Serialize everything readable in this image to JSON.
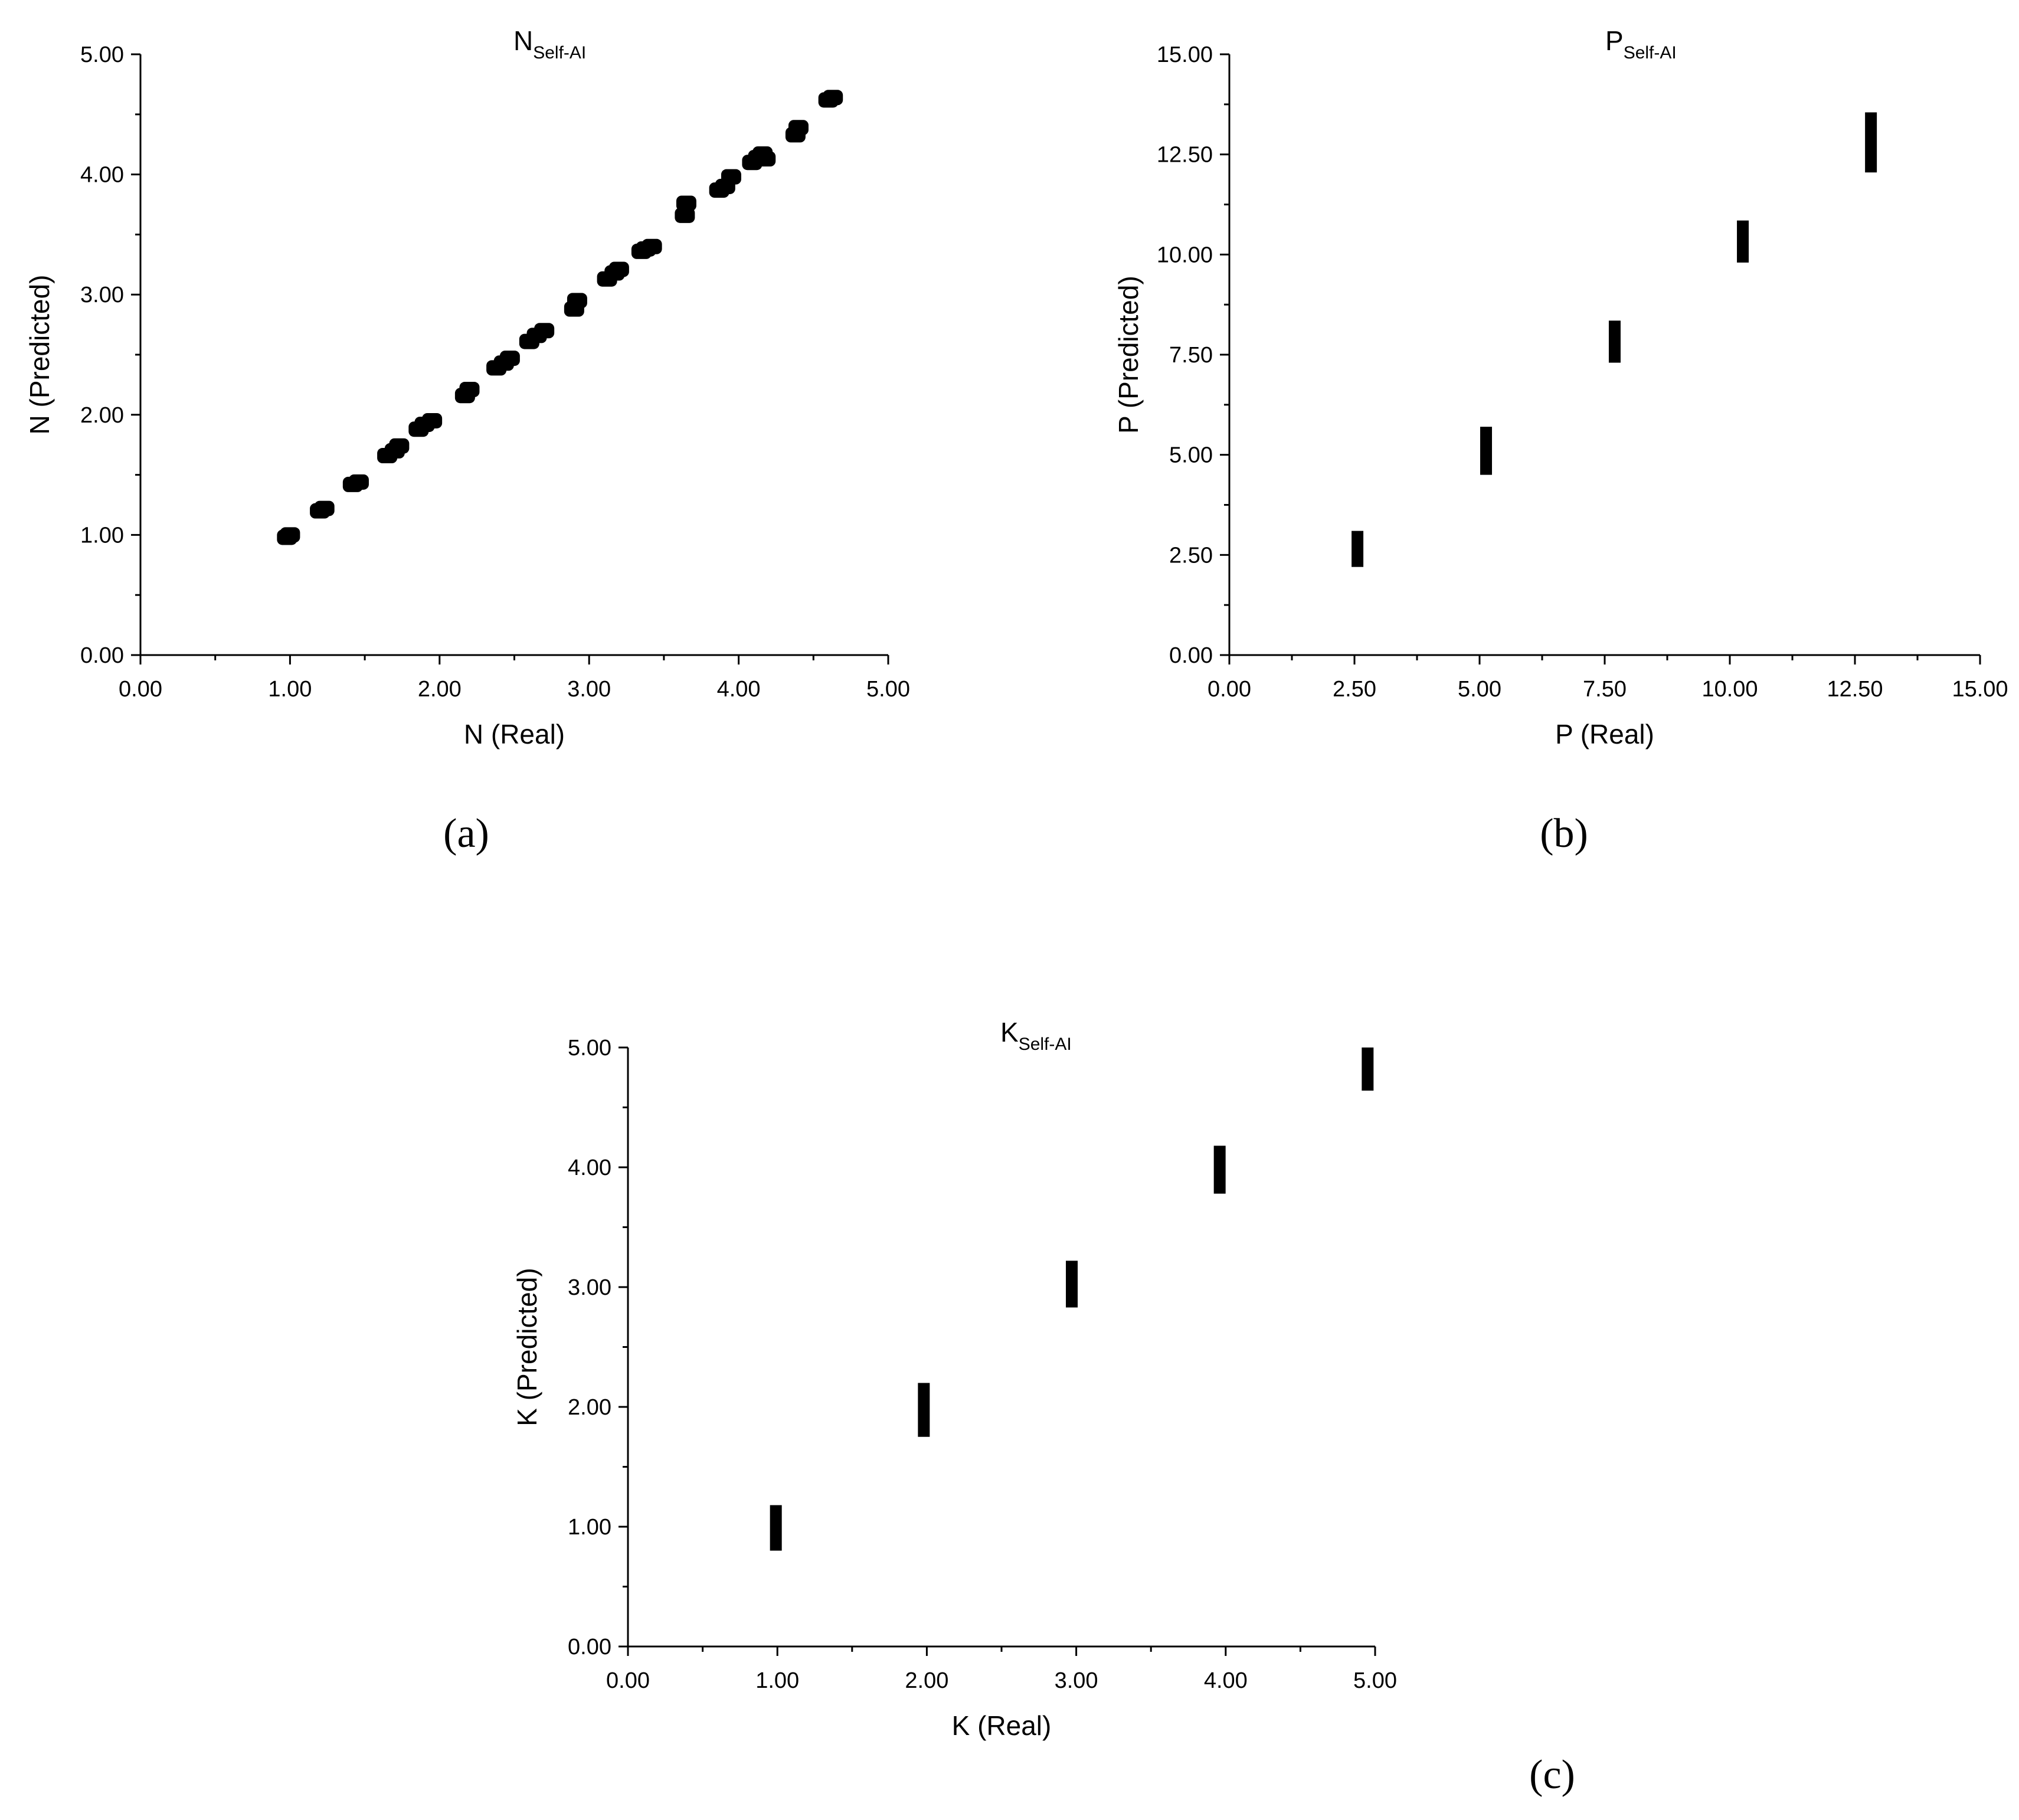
{
  "chart_data": [
    {
      "id": "a",
      "type": "scatter",
      "panel_label": "(a)",
      "title_main": "N",
      "title_sub": "Self-AI",
      "xlabel": "N (Real)",
      "ylabel": "N (Predicted)",
      "xlim": [
        0,
        5
      ],
      "ylim": [
        0,
        5
      ],
      "ticks": [
        "0.00",
        "1.00",
        "2.00",
        "3.00",
        "4.00",
        "5.00"
      ],
      "tick_values": [
        0,
        1,
        2,
        3,
        4,
        5
      ],
      "marker": "blob",
      "points": [
        [
          0.98,
          0.98
        ],
        [
          1.0,
          1.0
        ],
        [
          1.2,
          1.2
        ],
        [
          1.23,
          1.22
        ],
        [
          1.42,
          1.42
        ],
        [
          1.46,
          1.44
        ],
        [
          1.65,
          1.66
        ],
        [
          1.7,
          1.7
        ],
        [
          1.73,
          1.74
        ],
        [
          1.86,
          1.88
        ],
        [
          1.9,
          1.92
        ],
        [
          1.95,
          1.95
        ],
        [
          2.17,
          2.16
        ],
        [
          2.2,
          2.21
        ],
        [
          2.38,
          2.39
        ],
        [
          2.43,
          2.43
        ],
        [
          2.47,
          2.47
        ],
        [
          2.6,
          2.61
        ],
        [
          2.65,
          2.66
        ],
        [
          2.7,
          2.7
        ],
        [
          2.9,
          2.88
        ],
        [
          2.92,
          2.95
        ],
        [
          3.12,
          3.13
        ],
        [
          3.17,
          3.18
        ],
        [
          3.2,
          3.21
        ],
        [
          3.35,
          3.36
        ],
        [
          3.38,
          3.38
        ],
        [
          3.42,
          3.4
        ],
        [
          3.64,
          3.66
        ],
        [
          3.65,
          3.76
        ],
        [
          3.87,
          3.87
        ],
        [
          3.91,
          3.9
        ],
        [
          3.95,
          3.98
        ],
        [
          4.09,
          4.1
        ],
        [
          4.13,
          4.14
        ],
        [
          4.16,
          4.17
        ],
        [
          4.18,
          4.13
        ],
        [
          4.38,
          4.33
        ],
        [
          4.4,
          4.39
        ],
        [
          4.6,
          4.62
        ],
        [
          4.63,
          4.64
        ]
      ]
    },
    {
      "id": "b",
      "type": "scatter",
      "panel_label": "(b)",
      "title_main": "P",
      "title_sub": "Self-AI",
      "xlabel": "P (Real)",
      "ylabel": "P (Predicted)",
      "xlim": [
        0,
        15
      ],
      "ylim": [
        0,
        15
      ],
      "ticks": [
        "0.00",
        "2.50",
        "5.00",
        "7.50",
        "10.00",
        "12.50",
        "15.00"
      ],
      "tick_values": [
        0,
        2.5,
        5,
        7.5,
        10,
        12.5,
        15
      ],
      "marker": "bar",
      "points": [
        [
          2.56,
          2.2,
          3.1
        ],
        [
          5.13,
          4.5,
          5.7
        ],
        [
          7.7,
          7.3,
          8.35
        ],
        [
          10.26,
          9.8,
          10.85
        ],
        [
          12.82,
          12.05,
          13.55
        ]
      ]
    },
    {
      "id": "c",
      "type": "scatter",
      "panel_label": "(c)",
      "title_main": "K",
      "title_sub": "Self-AI",
      "xlabel": "K (Real)",
      "ylabel": "K (Predicted)",
      "xlim": [
        0,
        5
      ],
      "ylim": [
        0,
        5
      ],
      "ticks": [
        "0.00",
        "1.00",
        "2.00",
        "3.00",
        "4.00",
        "5.00"
      ],
      "tick_values": [
        0,
        1,
        2,
        3,
        4,
        5
      ],
      "marker": "bar",
      "points": [
        [
          0.99,
          0.8,
          1.18
        ],
        [
          1.98,
          1.75,
          2.2
        ],
        [
          2.97,
          2.83,
          3.22
        ],
        [
          3.96,
          3.78,
          4.18
        ],
        [
          4.95,
          4.64,
          5.0
        ]
      ]
    }
  ]
}
